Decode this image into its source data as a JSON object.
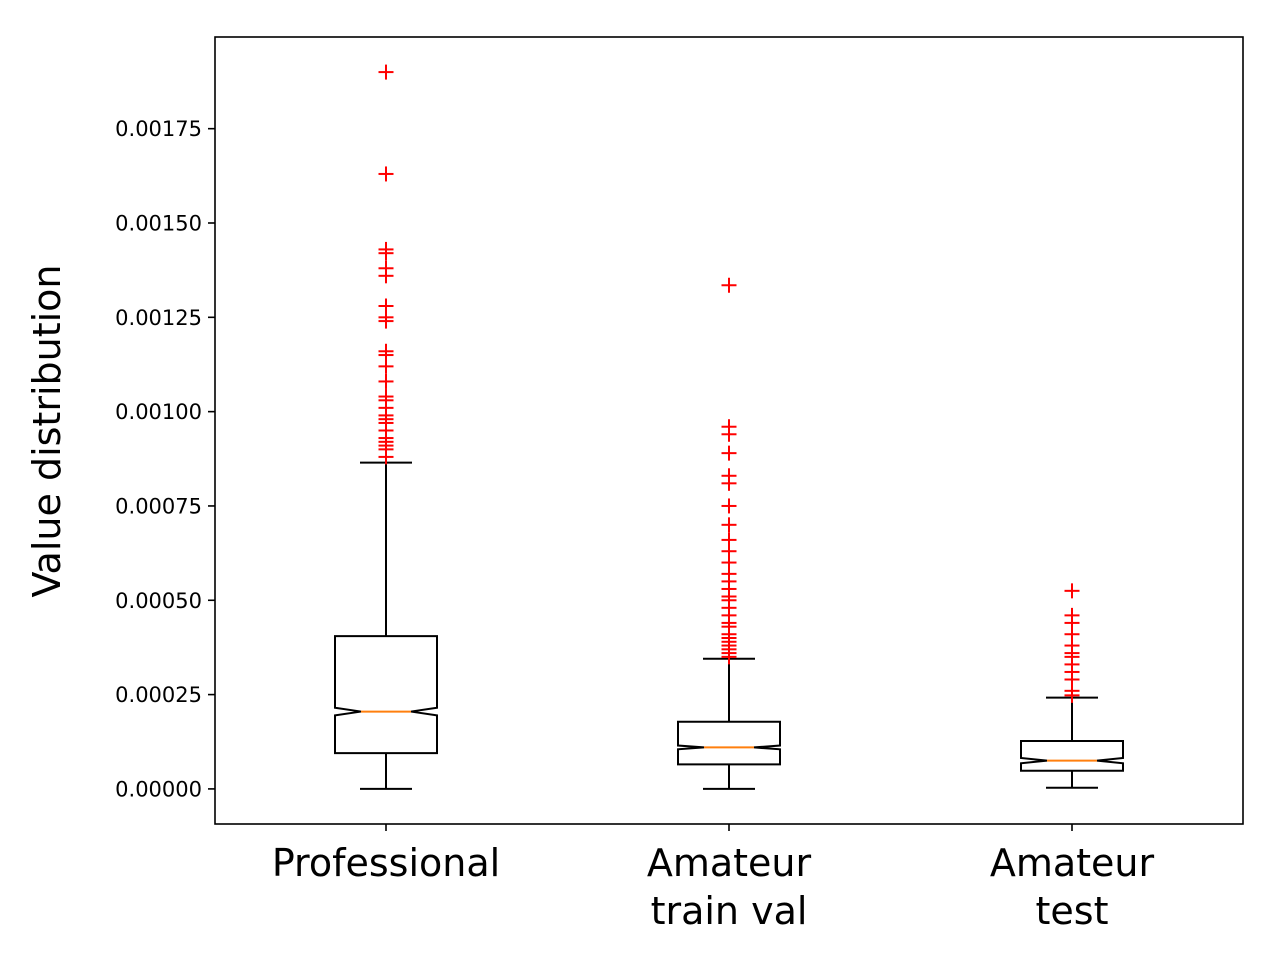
{
  "chart_data": {
    "type": "boxplot",
    "title": "",
    "xlabel": "",
    "ylabel": "Value distribution",
    "ylim": [
      -9.3e-05,
      0.001993
    ],
    "yticks": [
      0.0,
      0.00025,
      0.0005,
      0.00075,
      0.001,
      0.00125,
      0.0015,
      0.00175
    ],
    "ytick_labels": [
      "0.00000",
      "0.00025",
      "0.00050",
      "0.00075",
      "0.00100",
      "0.00125",
      "0.00150",
      "0.00175"
    ],
    "notched": true,
    "grid": false,
    "legend": "none",
    "colors": {
      "box": "#000000",
      "median": "#ff7f0e",
      "outlier": "#ff0000"
    },
    "categories": [
      {
        "label_lines": [
          "Professional"
        ]
      },
      {
        "label_lines": [
          "Amateur",
          "train val"
        ]
      },
      {
        "label_lines": [
          "Amateur",
          "test"
        ]
      }
    ],
    "boxes": [
      {
        "category": "Professional",
        "whisker_low": 0.0,
        "q1": 9.5e-05,
        "median": 0.000205,
        "q3": 0.000405,
        "whisker_high": 0.000865,
        "notch_low": 0.000195,
        "notch_high": 0.000215,
        "outliers": [
          0.0019,
          0.00163,
          0.00143,
          0.00142,
          0.00138,
          0.00136,
          0.00128,
          0.00125,
          0.00124,
          0.00116,
          0.00115,
          0.00112,
          0.00108,
          0.00104,
          0.00103,
          0.00101,
          0.00099,
          0.00098,
          0.00097,
          0.00095,
          0.00093,
          0.00092,
          0.00091,
          0.0009,
          0.00088
        ]
      },
      {
        "category": "Amateur train val",
        "whisker_low": 0.0,
        "q1": 6.5e-05,
        "median": 0.00011,
        "q3": 0.000178,
        "whisker_high": 0.000345,
        "notch_low": 0.000105,
        "notch_high": 0.000115,
        "outliers": [
          0.001335,
          0.00096,
          0.00094,
          0.00089,
          0.00083,
          0.00081,
          0.00075,
          0.0007,
          0.00066,
          0.00063,
          0.0006,
          0.00057,
          0.00055,
          0.00053,
          0.00051,
          0.0005,
          0.00048,
          0.00046,
          0.00044,
          0.00043,
          0.00041,
          0.0004,
          0.00039,
          0.00038,
          0.00037,
          0.00036,
          0.00035
        ]
      },
      {
        "category": "Amateur test",
        "whisker_low": 3e-06,
        "q1": 4.8e-05,
        "median": 7.5e-05,
        "q3": 0.000127,
        "whisker_high": 0.000242,
        "notch_low": 6.8e-05,
        "notch_high": 8.2e-05,
        "outliers": [
          0.000525,
          0.00046,
          0.00044,
          0.00041,
          0.00038,
          0.00036,
          0.00035,
          0.00033,
          0.00031,
          0.00029,
          0.00026,
          0.000248
        ]
      }
    ]
  }
}
